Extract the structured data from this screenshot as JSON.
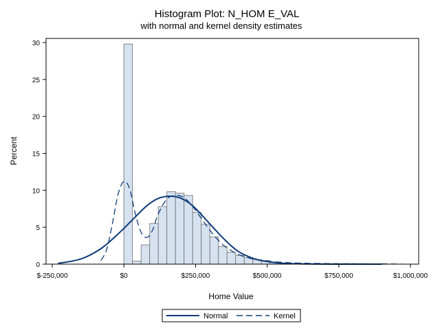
{
  "chart_data": {
    "type": "histogram",
    "title": "Histogram Plot: N_HOM E_VAL",
    "subtitle": "with normal and kernel density estimates",
    "xlabel": "Home Value",
    "ylabel": "Percent",
    "xlim": [
      -250000,
      1000000
    ],
    "ylim": [
      0,
      30
    ],
    "x_ticks": [
      -250000,
      0,
      250000,
      500000,
      750000,
      1000000
    ],
    "x_tick_labels": [
      "$-250,000",
      "$0",
      "$250,000",
      "$500,000",
      "$750,000",
      "$1,000,000"
    ],
    "y_ticks": [
      0,
      5,
      10,
      15,
      20,
      25,
      30
    ],
    "y_tick_labels": [
      "0",
      "5",
      "10",
      "15",
      "20",
      "25",
      "30"
    ],
    "grid": false,
    "bin_width": 30000,
    "bins": [
      {
        "start": 0,
        "value": 29.8
      },
      {
        "start": 30000,
        "value": 0.4
      },
      {
        "start": 60000,
        "value": 2.6
      },
      {
        "start": 90000,
        "value": 5.5
      },
      {
        "start": 120000,
        "value": 7.8
      },
      {
        "start": 150000,
        "value": 9.8
      },
      {
        "start": 180000,
        "value": 9.6
      },
      {
        "start": 210000,
        "value": 9.3
      },
      {
        "start": 240000,
        "value": 7.0
      },
      {
        "start": 270000,
        "value": 5.4
      },
      {
        "start": 300000,
        "value": 3.7
      },
      {
        "start": 330000,
        "value": 2.4
      },
      {
        "start": 360000,
        "value": 1.6
      },
      {
        "start": 390000,
        "value": 1.2
      },
      {
        "start": 420000,
        "value": 0.9
      },
      {
        "start": 450000,
        "value": 0.6
      },
      {
        "start": 480000,
        "value": 0.5
      },
      {
        "start": 510000,
        "value": 0.3
      }
    ],
    "series": [
      {
        "name": "Normal",
        "style": "solid",
        "color": "#0d3b7a",
        "x": [
          -230000,
          -150000,
          -80000,
          -20000,
          30000,
          80000,
          120000,
          160000,
          200000,
          240000,
          280000,
          320000,
          360000,
          400000,
          450000,
          500000,
          560000,
          650000,
          750000,
          900000
        ],
        "y": [
          0.1,
          0.7,
          2.1,
          4.1,
          6.0,
          7.9,
          8.9,
          9.2,
          8.9,
          7.9,
          6.3,
          4.6,
          3.0,
          1.7,
          0.8,
          0.35,
          0.1,
          0.02,
          0.0,
          0.0
        ]
      },
      {
        "name": "Kernel",
        "style": "dashed",
        "color": "#0d3b7a",
        "x": [
          -80000,
          -60000,
          -40000,
          -20000,
          0,
          20000,
          40000,
          60000,
          80000,
          100000,
          120000,
          150000,
          180000,
          210000,
          240000,
          270000,
          300000,
          330000,
          360000,
          400000,
          450000,
          500000,
          550000,
          600000,
          700000,
          800000,
          900000,
          970000
        ],
        "y": [
          0.5,
          2.0,
          5.5,
          9.5,
          11.2,
          10.2,
          6.8,
          4.3,
          3.6,
          4.6,
          6.8,
          8.8,
          9.3,
          9.0,
          7.8,
          6.2,
          4.6,
          3.2,
          2.2,
          1.3,
          0.7,
          0.4,
          0.25,
          0.15,
          0.08,
          0.05,
          0.03,
          0.01
        ]
      }
    ],
    "legend": {
      "placement": "bottom-center",
      "items": [
        {
          "label": "Normal",
          "style": "solid"
        },
        {
          "label": "Kernel",
          "style": "dashed"
        }
      ]
    },
    "colors": {
      "bar_fill": "#d6e2f0",
      "bar_stroke": "#6c6c6c",
      "line": "#0d3b7a",
      "frame": "#000000"
    }
  }
}
